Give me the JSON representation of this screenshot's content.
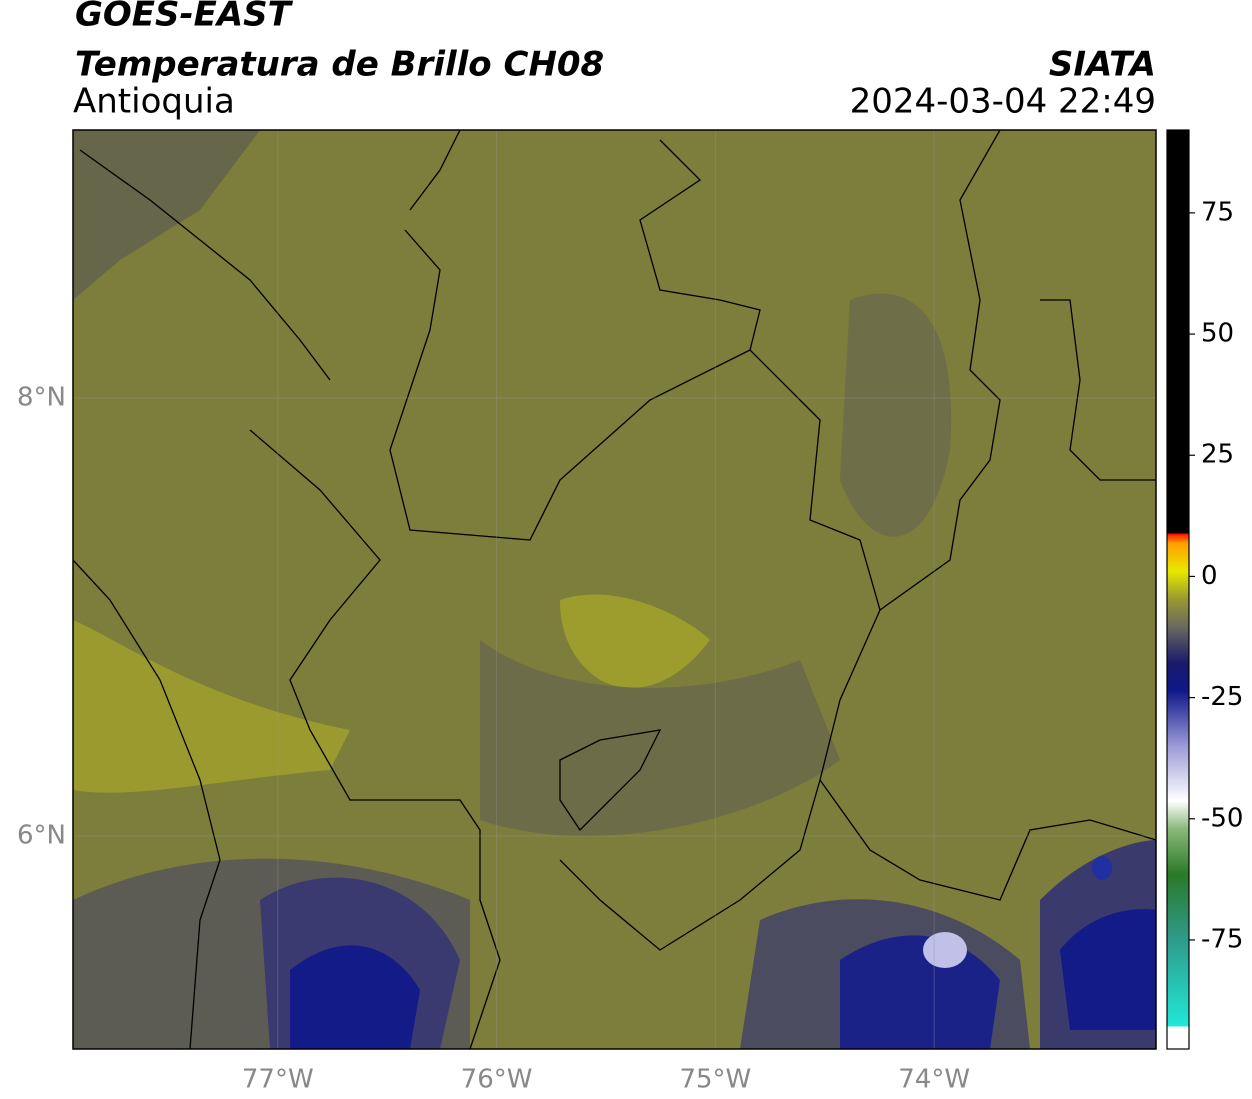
{
  "header": {
    "title": "GOES-EAST",
    "subtitle": "Temperatura de Brillo CH08",
    "region": "Antioquia",
    "source": "SIATA",
    "datetime": "2024-03-04 22:49"
  },
  "map": {
    "xlim": [
      -77.936,
      -72.986
    ],
    "ylim": [
      5.027,
      9.224
    ],
    "xticks": [
      {
        "value": -77,
        "label": "77°W"
      },
      {
        "value": -76,
        "label": "76°W"
      },
      {
        "value": -75,
        "label": "75°W"
      },
      {
        "value": -74,
        "label": "74°W"
      }
    ],
    "yticks": [
      {
        "value": 8,
        "label": "8°N"
      },
      {
        "value": 6,
        "label": "6°N"
      }
    ],
    "grid": true
  },
  "colorbar": {
    "ylim": [
      -97.5,
      92.1
    ],
    "yticks": [
      75,
      50,
      25,
      0,
      -25,
      -50,
      -75
    ]
  }
}
